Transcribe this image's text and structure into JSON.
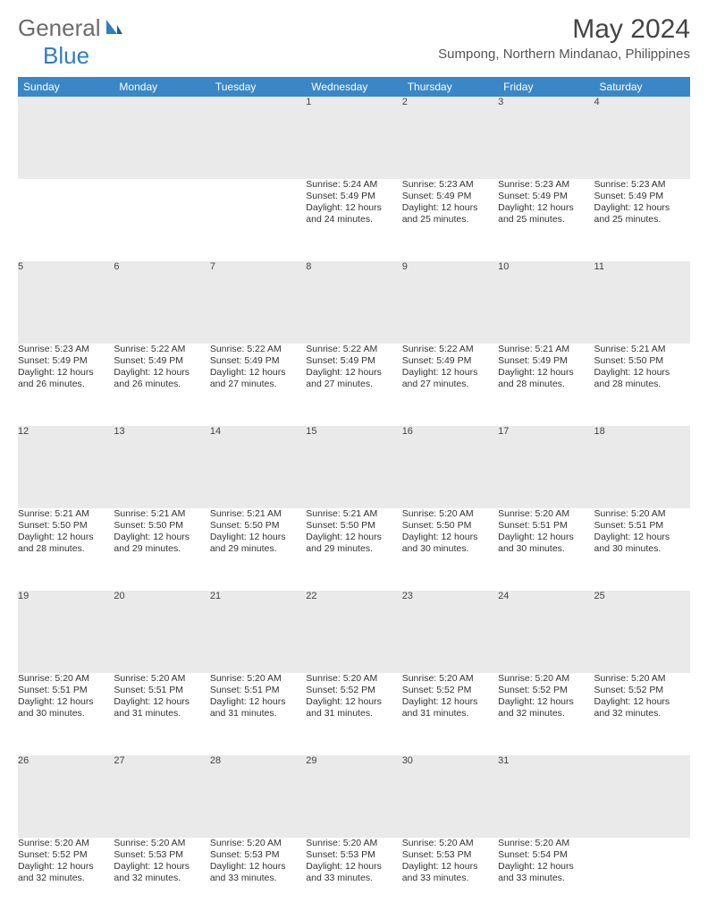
{
  "logo": {
    "general": "General",
    "blue": "Blue"
  },
  "title": "May 2024",
  "location": "Sumpong, Northern Mindanao, Philippines",
  "colors": {
    "header_bg": "#3a87c7",
    "header_text": "#ffffff",
    "daynum_bg": "#eaeaea",
    "border": "#3a6fa0",
    "text": "#333333",
    "page_bg": "#ffffff"
  },
  "weekdays": [
    "Sunday",
    "Monday",
    "Tuesday",
    "Wednesday",
    "Thursday",
    "Friday",
    "Saturday"
  ],
  "weeks": [
    [
      null,
      null,
      null,
      {
        "d": "1",
        "sr": "5:24 AM",
        "ss": "5:49 PM",
        "dh": "12",
        "dm": "24"
      },
      {
        "d": "2",
        "sr": "5:23 AM",
        "ss": "5:49 PM",
        "dh": "12",
        "dm": "25"
      },
      {
        "d": "3",
        "sr": "5:23 AM",
        "ss": "5:49 PM",
        "dh": "12",
        "dm": "25"
      },
      {
        "d": "4",
        "sr": "5:23 AM",
        "ss": "5:49 PM",
        "dh": "12",
        "dm": "25"
      }
    ],
    [
      {
        "d": "5",
        "sr": "5:23 AM",
        "ss": "5:49 PM",
        "dh": "12",
        "dm": "26"
      },
      {
        "d": "6",
        "sr": "5:22 AM",
        "ss": "5:49 PM",
        "dh": "12",
        "dm": "26"
      },
      {
        "d": "7",
        "sr": "5:22 AM",
        "ss": "5:49 PM",
        "dh": "12",
        "dm": "27"
      },
      {
        "d": "8",
        "sr": "5:22 AM",
        "ss": "5:49 PM",
        "dh": "12",
        "dm": "27"
      },
      {
        "d": "9",
        "sr": "5:22 AM",
        "ss": "5:49 PM",
        "dh": "12",
        "dm": "27"
      },
      {
        "d": "10",
        "sr": "5:21 AM",
        "ss": "5:49 PM",
        "dh": "12",
        "dm": "28"
      },
      {
        "d": "11",
        "sr": "5:21 AM",
        "ss": "5:50 PM",
        "dh": "12",
        "dm": "28"
      }
    ],
    [
      {
        "d": "12",
        "sr": "5:21 AM",
        "ss": "5:50 PM",
        "dh": "12",
        "dm": "28"
      },
      {
        "d": "13",
        "sr": "5:21 AM",
        "ss": "5:50 PM",
        "dh": "12",
        "dm": "29"
      },
      {
        "d": "14",
        "sr": "5:21 AM",
        "ss": "5:50 PM",
        "dh": "12",
        "dm": "29"
      },
      {
        "d": "15",
        "sr": "5:21 AM",
        "ss": "5:50 PM",
        "dh": "12",
        "dm": "29"
      },
      {
        "d": "16",
        "sr": "5:20 AM",
        "ss": "5:50 PM",
        "dh": "12",
        "dm": "30"
      },
      {
        "d": "17",
        "sr": "5:20 AM",
        "ss": "5:51 PM",
        "dh": "12",
        "dm": "30"
      },
      {
        "d": "18",
        "sr": "5:20 AM",
        "ss": "5:51 PM",
        "dh": "12",
        "dm": "30"
      }
    ],
    [
      {
        "d": "19",
        "sr": "5:20 AM",
        "ss": "5:51 PM",
        "dh": "12",
        "dm": "30"
      },
      {
        "d": "20",
        "sr": "5:20 AM",
        "ss": "5:51 PM",
        "dh": "12",
        "dm": "31"
      },
      {
        "d": "21",
        "sr": "5:20 AM",
        "ss": "5:51 PM",
        "dh": "12",
        "dm": "31"
      },
      {
        "d": "22",
        "sr": "5:20 AM",
        "ss": "5:52 PM",
        "dh": "12",
        "dm": "31"
      },
      {
        "d": "23",
        "sr": "5:20 AM",
        "ss": "5:52 PM",
        "dh": "12",
        "dm": "31"
      },
      {
        "d": "24",
        "sr": "5:20 AM",
        "ss": "5:52 PM",
        "dh": "12",
        "dm": "32"
      },
      {
        "d": "25",
        "sr": "5:20 AM",
        "ss": "5:52 PM",
        "dh": "12",
        "dm": "32"
      }
    ],
    [
      {
        "d": "26",
        "sr": "5:20 AM",
        "ss": "5:52 PM",
        "dh": "12",
        "dm": "32"
      },
      {
        "d": "27",
        "sr": "5:20 AM",
        "ss": "5:53 PM",
        "dh": "12",
        "dm": "32"
      },
      {
        "d": "28",
        "sr": "5:20 AM",
        "ss": "5:53 PM",
        "dh": "12",
        "dm": "33"
      },
      {
        "d": "29",
        "sr": "5:20 AM",
        "ss": "5:53 PM",
        "dh": "12",
        "dm": "33"
      },
      {
        "d": "30",
        "sr": "5:20 AM",
        "ss": "5:53 PM",
        "dh": "12",
        "dm": "33"
      },
      {
        "d": "31",
        "sr": "5:20 AM",
        "ss": "5:54 PM",
        "dh": "12",
        "dm": "33"
      },
      null
    ]
  ],
  "labels": {
    "sunrise": "Sunrise:",
    "sunset": "Sunset:",
    "daylight": "Daylight:",
    "hours": "hours",
    "and": "and",
    "minutes": "minutes."
  }
}
